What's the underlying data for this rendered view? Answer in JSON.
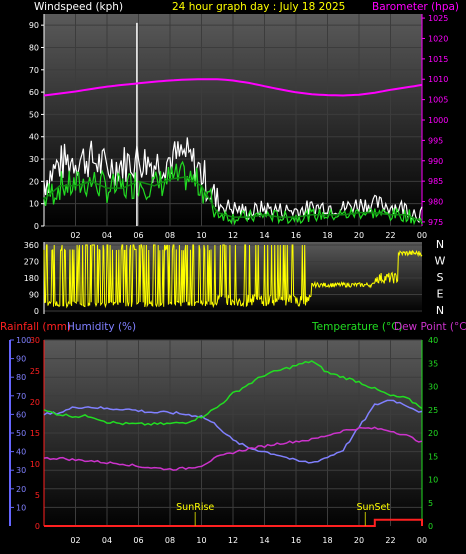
{
  "header": {
    "left": "Windspeed (kph)",
    "center": "24 hour graph day : July 18 2025",
    "right": "Barometer (hpa)"
  },
  "colors": {
    "wind_label": "#ffffff",
    "title": "#ffff00",
    "baro": "#ff00ff",
    "gust": "#ffffff",
    "avg": "#22dd22",
    "dir": "#ffff00",
    "rain": "#ff2020",
    "humidity": "#8080ff",
    "temp": "#22dd22",
    "dew": "#cc33cc",
    "axis_blue": "#6666ff",
    "panel_top": "#5a5a5a",
    "panel_bottom": "#000000"
  },
  "time_ticks": [
    "02",
    "04",
    "06",
    "08",
    "10",
    "12",
    "14",
    "16",
    "18",
    "20",
    "22",
    "00"
  ],
  "wind": {
    "left_ticks": [
      "0",
      "10",
      "20",
      "30",
      "40",
      "50",
      "60",
      "70",
      "80",
      "90"
    ],
    "right_ticks": [
      "975",
      "980",
      "985",
      "990",
      "995",
      "1000",
      "1005",
      "1010",
      "1015",
      "1020",
      "1025"
    ],
    "ylim": [
      0,
      95
    ],
    "baro_ylim": [
      974,
      1026
    ]
  },
  "direction": {
    "left_ticks": [
      "0",
      "90",
      "180",
      "270",
      "360"
    ],
    "compass": [
      "N",
      "W",
      "S",
      "E",
      "N"
    ],
    "ylim": [
      0,
      360
    ]
  },
  "bottom": {
    "labels": {
      "rain": "Rainfall (mm)",
      "humidity": "Humidity (%)",
      "temp": "Temperature (°C)",
      "dew": "Dew Point (°C)"
    },
    "humidity_ticks": [
      "10",
      "20",
      "30",
      "40",
      "50",
      "60",
      "70",
      "80",
      "90",
      "100"
    ],
    "rain_ticks": [
      "0",
      "5",
      "10",
      "15",
      "20",
      "25",
      "30"
    ],
    "temp_ticks": [
      "0",
      "5",
      "10",
      "15",
      "20",
      "25",
      "30",
      "35",
      "40"
    ],
    "humidity_ylim": [
      0,
      100
    ],
    "rain_ylim": [
      0,
      30
    ],
    "temp_ylim": [
      0,
      40
    ],
    "sunrise": "SunRise",
    "sunset": "SunSet"
  },
  "chart_data": [
    {
      "type": "line",
      "title": "24 hour graph day : July 18 2025",
      "ylabel": "Windspeed (kph)",
      "y2label": "Barometer (hpa)",
      "x_hours": [
        0,
        1,
        2,
        3,
        4,
        5,
        6,
        7,
        8,
        9,
        10,
        11,
        12,
        13,
        14,
        15,
        16,
        17,
        18,
        19,
        20,
        21,
        22,
        23,
        24
      ],
      "series": [
        {
          "name": "gust",
          "values": [
            20,
            28,
            30,
            30,
            26,
            28,
            30,
            28,
            30,
            32,
            24,
            10,
            8,
            6,
            8,
            7,
            7,
            8,
            9,
            8,
            10,
            10,
            9,
            8,
            5
          ]
        },
        {
          "name": "average",
          "values": [
            12,
            18,
            18,
            20,
            17,
            17,
            20,
            18,
            21,
            22,
            18,
            6,
            4,
            4,
            5,
            4,
            4,
            5,
            5,
            5,
            6,
            6,
            5,
            5,
            2
          ]
        },
        {
          "name": "barometer",
          "values": [
            1006,
            1006.5,
            1007,
            1007.6,
            1008.2,
            1008.6,
            1009,
            1009.4,
            1009.7,
            1009.9,
            1010,
            1010,
            1009.7,
            1009.1,
            1008.3,
            1007.5,
            1006.8,
            1006.3,
            1006.1,
            1006,
            1006.2,
            1006.7,
            1007.4,
            1008,
            1008.6
          ]
        }
      ],
      "gust_peak": {
        "hour": 5.9,
        "value": 91
      }
    },
    {
      "type": "scatter",
      "ylabel": "Wind direction",
      "compass_axis": [
        "N",
        "W",
        "S",
        "E",
        "N"
      ],
      "ylim": [
        0,
        360
      ],
      "segments": [
        {
          "hours": [
            0,
            11
          ],
          "range": "variable 0-360 (erratic)"
        },
        {
          "hours": [
            11,
            17
          ],
          "range": "mostly 0-90 with spikes to 360"
        },
        {
          "hours": [
            17,
            21
          ],
          "range": "approx 130-150"
        },
        {
          "hours": [
            21,
            22.5
          ],
          "range": "approx 150-200"
        },
        {
          "hours": [
            22.5,
            24
          ],
          "range": "approx 300-330"
        }
      ]
    },
    {
      "type": "line",
      "series": [
        {
          "name": "Temperature (°C)",
          "axis": "temp",
          "values": [
            24.8,
            24,
            23.6,
            23.6,
            22.4,
            22,
            21.9,
            21.9,
            22,
            22.3,
            23.5,
            25.5,
            28.5,
            30.5,
            32.5,
            33.5,
            34.5,
            35.5,
            33,
            32,
            31,
            29.5,
            28,
            27.5,
            25.5
          ]
        },
        {
          "name": "Dew Point (°C)",
          "axis": "temp",
          "values": [
            14.5,
            14.6,
            14.2,
            14,
            13.6,
            13.4,
            12.8,
            12.5,
            12.2,
            12.4,
            13,
            14.8,
            15.8,
            16.6,
            17.2,
            17.8,
            18.2,
            18.6,
            19.5,
            20.5,
            21,
            21,
            20.5,
            19.5,
            18
          ]
        },
        {
          "name": "Humidity (%)",
          "axis": "humidity",
          "values": [
            60,
            61,
            64,
            64,
            63,
            63,
            62,
            61,
            61,
            60,
            59,
            54,
            46,
            42,
            40,
            38,
            35,
            34,
            37,
            41,
            53,
            65,
            68,
            65,
            61
          ]
        },
        {
          "name": "Rainfall (mm)",
          "axis": "rain",
          "values": [
            0,
            0,
            0,
            0,
            0,
            0,
            0,
            0,
            0,
            0,
            0,
            0,
            0,
            0,
            0,
            0,
            0,
            0,
            0,
            0,
            0,
            1,
            1,
            1,
            1
          ]
        }
      ],
      "sunrise_hour": 9.6,
      "sunset_hour": 20.4
    }
  ]
}
